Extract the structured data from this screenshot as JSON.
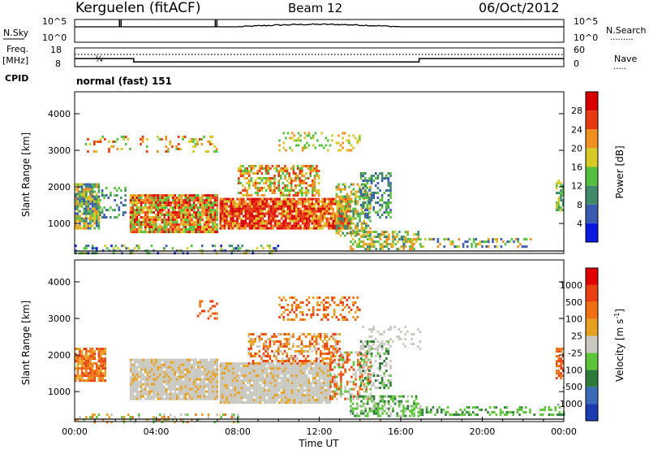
{
  "header": {
    "station": "Kerguelen (fitACF)",
    "beam": "Beam 12",
    "date": "06/Oct/2012"
  },
  "left_labels": {
    "nsky": "N.Sky",
    "freq": "Freq.",
    "freq_unit": "[MHz]",
    "cpid": "CPID"
  },
  "right_labels": {
    "nsearch": "N.Search",
    "nave": "Nave"
  },
  "cpid_text": "normal (fast) 151",
  "colorbars": {
    "power": {
      "label": "Power [dB]",
      "ticks": [
        "4",
        "8",
        "12",
        "16",
        "20",
        "24",
        "28"
      ],
      "colors": [
        "#0a18e0",
        "#3a5ab0",
        "#3f8a6a",
        "#55c040",
        "#d6c825",
        "#f09020",
        "#e83a10",
        "#d80000"
      ]
    },
    "velocity": {
      "label": "Velocity [m s",
      "label_sup": "-1",
      "label_close": "]",
      "ticks": [
        "1000",
        "500",
        "100",
        "25",
        "-25",
        "-100",
        "-500",
        "-1000"
      ],
      "colors": [
        "#1a3cb0",
        "#3a6ab8",
        "#2e7a3a",
        "#5cc438",
        "#c8c8c0",
        "#e6a020",
        "#ef7010",
        "#e84010",
        "#e00000"
      ]
    }
  },
  "chart_data": [
    {
      "type": "line",
      "name": "N.Sky / N.Search",
      "y_left_ticks": [
        "10^5",
        "10^0"
      ],
      "y_right_ticks": [
        "10^5",
        "10^0"
      ],
      "xlim_hours": [
        0,
        24
      ]
    },
    {
      "type": "line",
      "name": "Freq / Nave",
      "y_left_ticks": [
        "18",
        "8"
      ],
      "y_right_ticks": [
        "60",
        "0"
      ],
      "freq_steps": [
        {
          "t": 0.0,
          "v": 12.3
        },
        {
          "t": 2.9,
          "v": 10.5
        },
        {
          "t": 16.9,
          "v": 12.3
        },
        {
          "t": 24.0,
          "v": 12.3
        }
      ]
    },
    {
      "type": "heatmap",
      "name": "power",
      "xlabel": "",
      "ylabel": "Slant Range [km]",
      "yticks": [
        "1000",
        "2000",
        "3000",
        "4000"
      ],
      "ylim": [
        180,
        4600
      ],
      "xlim_hours": [
        0,
        24
      ]
    },
    {
      "type": "heatmap",
      "name": "velocity",
      "xlabel": "Time UT",
      "ylabel": "Slant Range [km]",
      "yticks": [
        "1000",
        "2000",
        "3000",
        "4000"
      ],
      "ylim": [
        180,
        4600
      ],
      "xticks": [
        "00:00",
        "04:00",
        "08:00",
        "12:00",
        "16:00",
        "20:00",
        "00:00"
      ]
    }
  ]
}
